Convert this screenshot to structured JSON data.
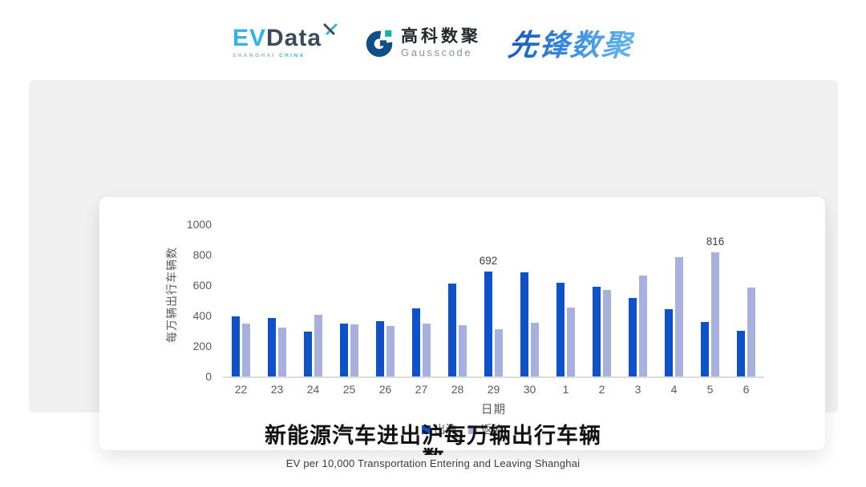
{
  "header": {
    "evdata": {
      "ev": "EV",
      "data": "Data",
      "tagline_shanghai": "SHANGHAI",
      "tagline_china": "CHINA"
    },
    "gausscode": {
      "cn": "高科数聚",
      "en": "Gausscode"
    },
    "xianfeng": {
      "text": "先锋数聚"
    }
  },
  "chart_data": {
    "type": "bar",
    "title": "新能源汽车进出沪每万辆出行车辆数",
    "subtitle": "EV per 10,000 Transportation Entering and Leaving Shanghai",
    "xlabel": "日期",
    "ylabel": "每万辆出行车辆数",
    "categories": [
      "22",
      "23",
      "24",
      "25",
      "26",
      "27",
      "28",
      "29",
      "30",
      "1",
      "2",
      "3",
      "4",
      "5",
      "6"
    ],
    "series": [
      {
        "name": "出沪",
        "color": "#0d52c9",
        "values": [
          395,
          386,
          295,
          350,
          364,
          450,
          610,
          692,
          684,
          614,
          591,
          517,
          442,
          360,
          302
        ]
      },
      {
        "name": "返沪",
        "color": "#a8b1dd",
        "values": [
          345,
          322,
          405,
          340,
          333,
          347,
          338,
          313,
          354,
          453,
          567,
          663,
          786,
          816,
          584
        ]
      }
    ],
    "annotations": [
      {
        "series": 0,
        "category": "29",
        "label": "692"
      },
      {
        "series": 1,
        "category": "5",
        "label": "816"
      }
    ],
    "ylim": [
      0,
      1000
    ],
    "yticks": [
      0,
      200,
      400,
      600,
      800,
      1000
    ],
    "grid": false,
    "legend_position": "bottom"
  },
  "footer": {
    "title_line1": "新能源汽车进出沪每万辆出行车辆",
    "title_line2": "数",
    "subtitle": "EV per 10,000 Transportation Entering and Leaving Shanghai"
  },
  "colors": {
    "series_out": "#0d52c9",
    "series_return": "#a8b1dd",
    "axis_text": "#595959",
    "panel_bg": "#f0f0f1",
    "brand_lightblue": "#35b2e5",
    "brand_navy": "#3d4a5a",
    "gauss_blue": "#114e86",
    "gauss_teal": "#17b0a7"
  }
}
